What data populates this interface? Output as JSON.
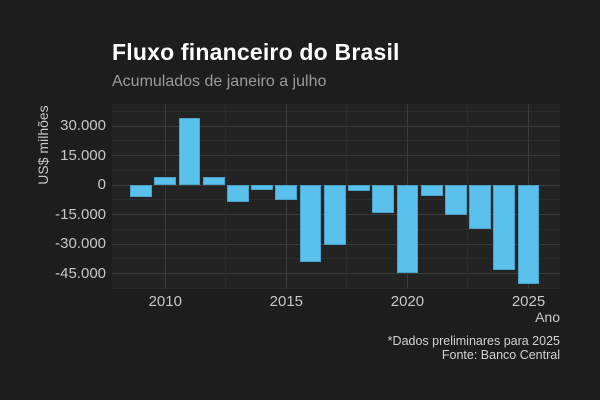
{
  "chart_data": {
    "type": "bar",
    "title": "Fluxo financeiro do Brasil",
    "subtitle": "Acumulados de janeiro a julho",
    "xlabel": "Ano",
    "ylabel": "US$ milhões",
    "x": [
      2009,
      2010,
      2011,
      2012,
      2013,
      2014,
      2015,
      2016,
      2017,
      2018,
      2019,
      2020,
      2021,
      2022,
      2023,
      2024,
      2025
    ],
    "values": [
      -6300,
      4000,
      34100,
      4300,
      -8700,
      -2400,
      -7400,
      -39300,
      -30300,
      -2800,
      -14000,
      -44800,
      -5800,
      -15100,
      -22300,
      -43100,
      -50200
    ],
    "xlim": [
      2007.8,
      2026.3
    ],
    "ylim": [
      -52600,
      41200
    ],
    "yticks": {
      "values": [
        30000,
        15000,
        0,
        -15000,
        -30000,
        -45000
      ],
      "labels": [
        "30.000",
        "15.000",
        "0",
        "-15.000",
        "-30.000",
        "-45.000"
      ]
    },
    "xticks": {
      "values": [
        2010,
        2015,
        2020,
        2025
      ],
      "labels": [
        "2010",
        "2015",
        "2020",
        "2025"
      ]
    },
    "grid": "major+minor horizontal and vertical, no axis lines",
    "legend": "none",
    "bar_width_fraction": 0.9
  },
  "caption": {
    "note": "*Dados preliminares para 2025",
    "source": "Fonte: Banco Central"
  },
  "colors": {
    "background": "#1d1d1d",
    "panel_background": "#232323",
    "grid_major": "#3b3b3b",
    "grid_minor": "#2b2b2b",
    "bar": "#59c1ec",
    "title_text": "#ffffff",
    "subtitle_text": "#9b9b9b",
    "axis_text": "#c7c7c7",
    "caption_text": "#d2d2d2"
  }
}
